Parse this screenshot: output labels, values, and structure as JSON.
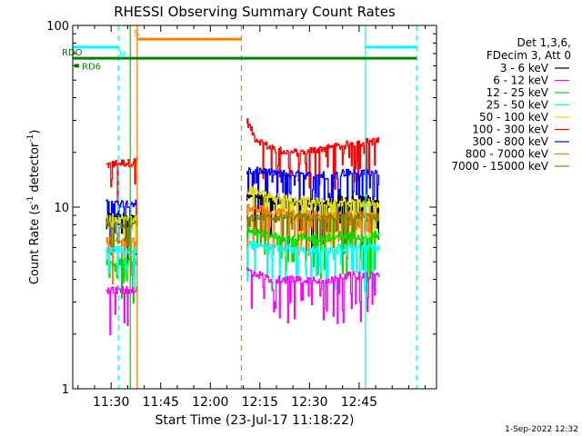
{
  "chart_data": {
    "type": "line",
    "title": "RHESSI Observing Summary Count Rates",
    "xlabel": "Start Time (23-Jul-17 11:18:22)",
    "ylabel": "Count Rate (s",
    "ylabel_sup": "-1",
    "ylabel_tail": " detector",
    "ylabel_tail_sup": "-1",
    "ylabel_close": ")",
    "y_scale": "log",
    "ylim": [
      1,
      100
    ],
    "x_units": "minutes after 11:18:22",
    "xlim": [
      0,
      110
    ],
    "x_ticks": [
      {
        "label": "11:30",
        "value": 11.6
      },
      {
        "label": "11:45",
        "value": 26.6
      },
      {
        "label": "12:00",
        "value": 41.6
      },
      {
        "label": "12:15",
        "value": 56.6
      },
      {
        "label": "12:30",
        "value": 71.6
      },
      {
        "label": "12:45",
        "value": 86.6
      }
    ],
    "y_ticks": [
      {
        "label": "100",
        "value": 100
      },
      {
        "label": "10",
        "value": 10
      },
      {
        "label": "1",
        "value": 1
      }
    ],
    "legend": {
      "position": "right",
      "header": [
        "Det 1,3,6,",
        "FDecim 3, Att 0"
      ],
      "entries": [
        {
          "name": "3 - 6 keV",
          "color": "#000000"
        },
        {
          "name": "6 - 12 keV",
          "color": "#ff00ff"
        },
        {
          "name": "12 - 25 keV",
          "color": "#00dd00"
        },
        {
          "name": "25 - 50 keV",
          "color": "#00ffff"
        },
        {
          "name": "50 - 100 keV",
          "color": "#dddd00"
        },
        {
          "name": "100 - 300 keV",
          "color": "#ff0000"
        },
        {
          "name": "300 - 800 keV",
          "color": "#0000ff"
        },
        {
          "name": "800 - 7000 keV",
          "color": "#ff8000"
        },
        {
          "name": "7000 - 15000 keV",
          "color": "#808000"
        }
      ]
    },
    "segments": [
      {
        "start": 10.0,
        "end": 19.5
      },
      {
        "start": 52.5,
        "end": 92.5
      }
    ],
    "series": [
      {
        "name": "100 - 300 keV",
        "color": "#ff0000",
        "values": [
          [
            10.0,
            17.0
          ],
          [
            14.0,
            17.5
          ],
          [
            18.0,
            17.5
          ],
          [
            19.5,
            18.5
          ],
          [
            52.5,
            30.0
          ],
          [
            55.0,
            24.0
          ],
          [
            60.0,
            21.0
          ],
          [
            65.0,
            20.0
          ],
          [
            70.0,
            20.0
          ],
          [
            75.0,
            21.0
          ],
          [
            80.0,
            21.5
          ],
          [
            85.0,
            22.5
          ],
          [
            90.0,
            23.0
          ],
          [
            92.5,
            23.0
          ]
        ]
      },
      {
        "name": "300 - 800 keV",
        "color": "#0000ff",
        "values": [
          [
            10.0,
            10.5
          ],
          [
            19.5,
            10.5
          ],
          [
            52.5,
            16.0
          ],
          [
            60.0,
            15.5
          ],
          [
            70.0,
            15.0
          ],
          [
            80.0,
            15.0
          ],
          [
            92.5,
            15.5
          ]
        ]
      },
      {
        "name": "3 - 6 keV",
        "color": "#000000",
        "values": [
          [
            10.0,
            8.8
          ],
          [
            19.5,
            8.8
          ],
          [
            52.5,
            11.5
          ],
          [
            60.0,
            11.0
          ],
          [
            70.0,
            10.5
          ],
          [
            80.0,
            10.5
          ],
          [
            92.5,
            11.0
          ]
        ]
      },
      {
        "name": "50 - 100 keV",
        "color": "#dddd00",
        "values": [
          [
            10.0,
            8.6
          ],
          [
            19.5,
            8.6
          ],
          [
            52.5,
            12.5
          ],
          [
            60.0,
            11.5
          ],
          [
            70.0,
            10.8
          ],
          [
            80.0,
            10.5
          ],
          [
            92.5,
            10.5
          ]
        ]
      },
      {
        "name": "800 - 7000 keV",
        "color": "#ff8000",
        "values": [
          [
            10.0,
            6.5
          ],
          [
            19.5,
            6.5
          ],
          [
            52.5,
            10.0
          ],
          [
            60.0,
            9.5
          ],
          [
            70.0,
            9.2
          ],
          [
            80.0,
            9.0
          ],
          [
            92.5,
            9.0
          ]
        ]
      },
      {
        "name": "7000 - 15000 keV",
        "color": "#808000",
        "values": [
          [
            10.0,
            8.0
          ],
          [
            19.5,
            8.0
          ],
          [
            52.5,
            9.0
          ],
          [
            70.0,
            8.8
          ],
          [
            92.5,
            8.8
          ]
        ]
      },
      {
        "name": "12 - 25 keV",
        "color": "#00dd00",
        "values": [
          [
            10.0,
            5.0
          ],
          [
            19.5,
            5.0
          ],
          [
            52.5,
            7.5
          ],
          [
            60.0,
            7.0
          ],
          [
            70.0,
            6.8
          ],
          [
            80.0,
            6.8
          ],
          [
            92.5,
            7.0
          ]
        ]
      },
      {
        "name": "25 - 50 keV",
        "color": "#00ffff",
        "values": [
          [
            10.0,
            5.8
          ],
          [
            19.5,
            5.8
          ],
          [
            52.5,
            6.3
          ],
          [
            60.0,
            6.0
          ],
          [
            70.0,
            5.8
          ],
          [
            80.0,
            5.8
          ],
          [
            92.5,
            6.0
          ]
        ]
      },
      {
        "name": "6 - 12 keV",
        "color": "#ff00ff",
        "values": [
          [
            10.0,
            3.5
          ],
          [
            19.5,
            3.5
          ],
          [
            52.5,
            4.5
          ],
          [
            60.0,
            4.0
          ],
          [
            70.0,
            4.0
          ],
          [
            80.0,
            4.0
          ],
          [
            92.5,
            4.2
          ]
        ]
      }
    ],
    "annotations": {
      "vertical_lines": [
        {
          "x": 13.8,
          "color": "#00ffff",
          "style": "dashed"
        },
        {
          "x": 17.4,
          "color": "#00dd00",
          "style": "solid"
        },
        {
          "x": 19.5,
          "color": "#ff8000",
          "style": "solid"
        },
        {
          "x": 51.0,
          "color": "#ff8000",
          "style": "dashed"
        },
        {
          "x": 88.5,
          "color": "#00ffff",
          "style": "solid"
        },
        {
          "x": 104.0,
          "color": "#00ffff",
          "style": "dashed"
        }
      ],
      "bars": [
        {
          "label": "",
          "color": "#00ffff",
          "x_start": 0,
          "x_end": 13.8,
          "y": 76
        },
        {
          "label": "",
          "color": "#00ffff",
          "x_start": 88.5,
          "x_end": 104.0,
          "y": 76
        },
        {
          "label": "RDO",
          "color": "#008000",
          "x_start": 0,
          "x_end": 104.0,
          "y": 66
        },
        {
          "label": "S",
          "color": "#ff8000",
          "x_start": 19.5,
          "x_end": 51.0,
          "y": 84
        }
      ],
      "markers": [
        {
          "label": "N",
          "color": "#00ffff"
        },
        {
          "label": "RD6",
          "color": "#008000"
        }
      ]
    },
    "footer_stamp": "1-Sep-2022 12:32",
    "grid": false
  }
}
